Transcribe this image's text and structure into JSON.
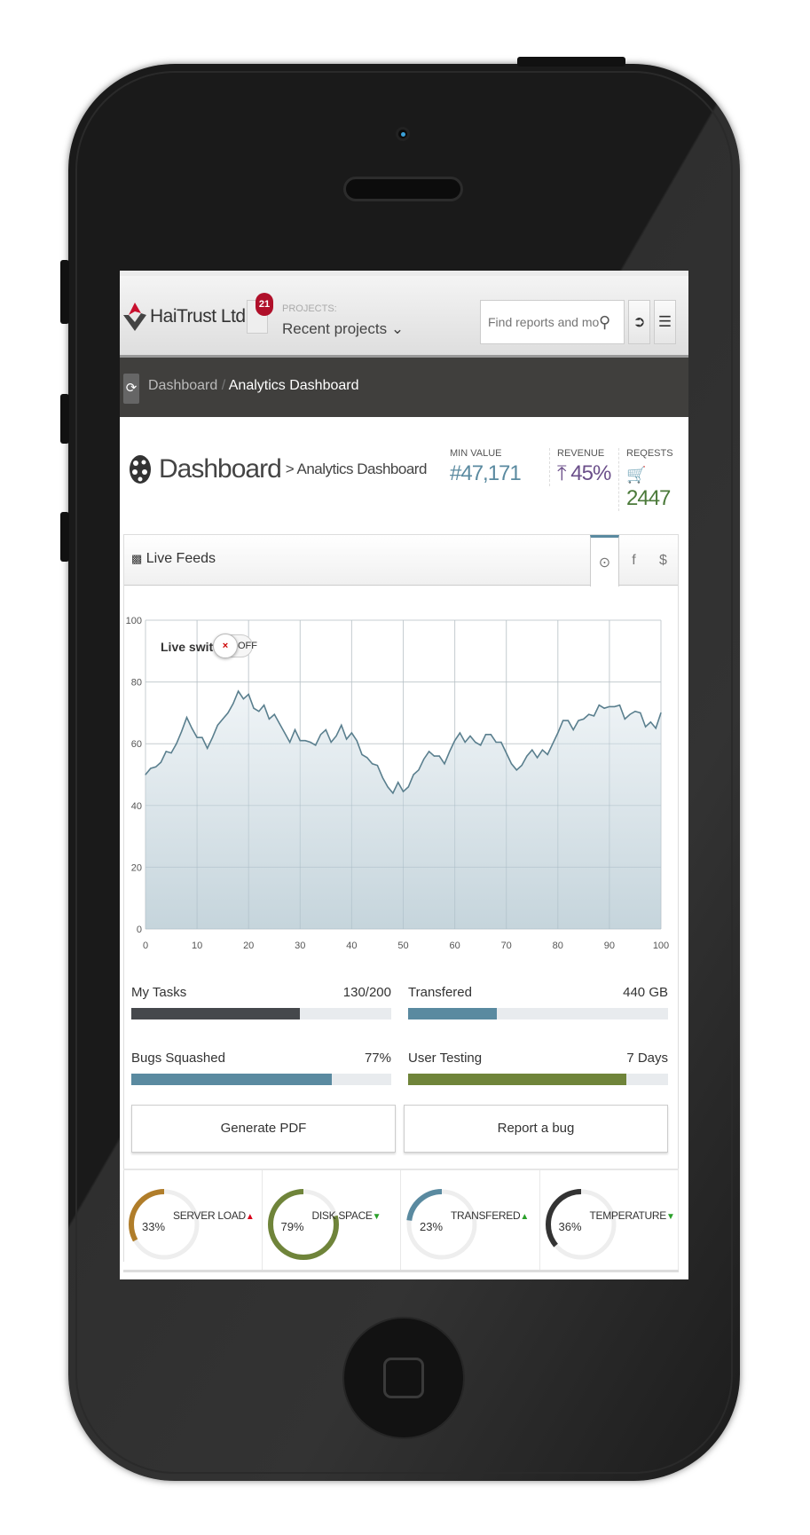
{
  "header": {
    "brand": "HaiTrust Ltd",
    "notification_count": "21",
    "projects_label": "PROJECTS:",
    "projects_value": "Recent projects ⌄",
    "search_placeholder": "Find reports and more"
  },
  "breadcrumb": {
    "items": [
      "Dashboard",
      "Analytics Dashboard"
    ],
    "separator": "/"
  },
  "page": {
    "title": "Dashboard",
    "subtitle": "> Analytics Dashboard"
  },
  "stats": [
    {
      "label": "MIN VALUE",
      "value": "#47,171",
      "color": "#5a8aa0"
    },
    {
      "label": "REVENUE",
      "value": "45%",
      "color": "#6b4f8a",
      "icon": "arrow-circle-up-icon"
    },
    {
      "label": "REQESTS",
      "value": "2447",
      "color": "#4b7a3a",
      "icon": "cart-icon"
    }
  ],
  "panel": {
    "title": "Live Feeds",
    "tabs": [
      "⊙",
      "f",
      "$"
    ],
    "active_tab": 0,
    "live_switch_label": "Live switch",
    "live_switch_state": "OFF"
  },
  "chart_data": {
    "type": "area",
    "xlim": [
      0,
      100
    ],
    "ylim": [
      0,
      100
    ],
    "grid": true,
    "xticks": [
      "0",
      "10",
      "20",
      "30",
      "40",
      "50",
      "60",
      "70",
      "80",
      "90",
      "100"
    ],
    "yticks": [
      "0",
      "20",
      "40",
      "60",
      "80",
      "100"
    ],
    "line_color": "#5a7f8e",
    "x": [
      0,
      1,
      2,
      3,
      4,
      5,
      6,
      7,
      8,
      9,
      10,
      11,
      12,
      13,
      14,
      15,
      16,
      17,
      18,
      19,
      20,
      21,
      22,
      23,
      24,
      25,
      26,
      27,
      28,
      29,
      30,
      31,
      32,
      33,
      34,
      35,
      36,
      37,
      38,
      39,
      40,
      41,
      42,
      43,
      44,
      45,
      46,
      47,
      48,
      49,
      50,
      51,
      52,
      53,
      54,
      55,
      56,
      57,
      58,
      59,
      60,
      61,
      62,
      63,
      64,
      65,
      66,
      67,
      68,
      69,
      70,
      71,
      72,
      73,
      74,
      75,
      76,
      77,
      78,
      79,
      80,
      81,
      82,
      83,
      84,
      85,
      86,
      87,
      88,
      89,
      90,
      91,
      92,
      93,
      94,
      95,
      96,
      97,
      98,
      99,
      100
    ],
    "y": [
      50,
      52,
      52.5,
      54,
      57.5,
      57,
      60,
      64,
      68.5,
      65,
      62,
      62,
      58.5,
      62,
      66,
      68,
      70,
      73,
      77,
      74.5,
      76,
      71.5,
      70.5,
      72.5,
      68,
      69.5,
      66.5,
      63.5,
      60.5,
      64.5,
      61,
      61,
      60.5,
      59.5,
      63,
      64.5,
      60.5,
      62.5,
      66,
      61.5,
      63.5,
      61,
      56.5,
      55.5,
      53.5,
      53,
      49,
      46,
      44,
      47.5,
      44.5,
      46,
      50,
      51.5,
      55,
      57.5,
      56,
      56,
      53.5,
      57.5,
      61,
      63.5,
      60.5,
      62.5,
      60.5,
      59.5,
      63,
      63,
      60.5,
      60.5,
      57,
      53.5,
      51.5,
      53,
      56,
      58,
      55.5,
      58,
      56.5,
      60,
      63.5,
      67.5,
      67.5,
      64.5,
      67.5,
      68,
      69.5,
      69,
      72.5,
      71.5,
      72,
      72,
      72.5,
      68,
      69.5,
      70.5,
      70,
      65.5,
      67,
      65,
      70
    ]
  },
  "progress": [
    {
      "label": "My Tasks",
      "value": "130/200",
      "fraction": 0.65,
      "color": "#45484c"
    },
    {
      "label": "Transfered",
      "value": "440 GB",
      "fraction": 0.34,
      "color": "#5a8aa0"
    },
    {
      "label": "Bugs Squashed",
      "value": "77%",
      "fraction": 0.77,
      "color": "#5a8aa0"
    },
    {
      "label": "User Testing",
      "value": "7 Days",
      "fraction": 0.84,
      "color": "#6f843a"
    }
  ],
  "buttons": {
    "pdf": "Generate PDF",
    "bug": "Report a bug"
  },
  "gauges": [
    {
      "label": "SERVER LOAD",
      "value": "33%",
      "percent": 33,
      "color": "#b07d2a",
      "trend": "up",
      "trend_color": "#d9001b"
    },
    {
      "label": "DISK SPACE",
      "value": "79%",
      "percent": 79,
      "color": "#6f843a",
      "trend": "down",
      "trend_color": "#2aa02a"
    },
    {
      "label": "TRANSFERED",
      "value": "23%",
      "percent": 23,
      "color": "#5a8aa0",
      "trend": "up",
      "trend_color": "#2aa02a"
    },
    {
      "label": "TEMPERATURE",
      "value": "36%",
      "percent": 36,
      "color": "#333333",
      "trend": "down",
      "trend_color": "#2aa02a"
    }
  ]
}
